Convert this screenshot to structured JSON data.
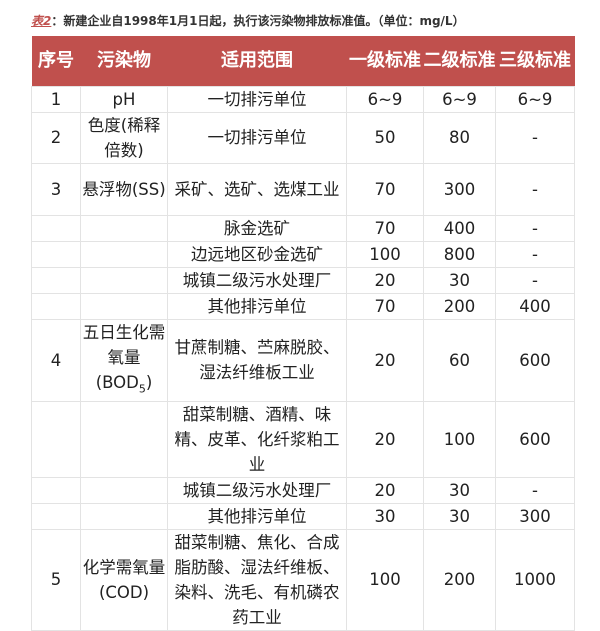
{
  "caption": {
    "tag": "表2",
    "text": "：新建企业自1998年1月1日起，执行该污染物排放标准值。（单位：mg/L）"
  },
  "colors": {
    "header_bg": "#c0504d",
    "header_text": "#ffffff",
    "tag": "#c0504d"
  },
  "headers": [
    "序号",
    "污染物",
    "适用范围",
    "一级标准",
    "二级标准",
    "三级标准"
  ],
  "rows": [
    {
      "no": "1",
      "pollutant": "pH",
      "scope": "一切排污单位",
      "l1": "6~9",
      "l2": "6~9",
      "l3": "6~9"
    },
    {
      "no": "2",
      "pollutant": "色度(稀释倍数)",
      "scope": "一切排污单位",
      "l1": "50",
      "l2": "80",
      "l3": "-"
    },
    {
      "no": "3",
      "pollutant": "悬浮物(SS)",
      "scope": "采矿、选矿、选煤工业",
      "l1": "70",
      "l2": "300",
      "l3": "-"
    },
    {
      "no": "",
      "pollutant": "",
      "scope": "脉金选矿",
      "l1": "70",
      "l2": "400",
      "l3": "-"
    },
    {
      "no": "",
      "pollutant": "",
      "scope": "边远地区砂金选矿",
      "l1": "100",
      "l2": "800",
      "l3": "-"
    },
    {
      "no": "",
      "pollutant": "",
      "scope": "城镇二级污水处理厂",
      "l1": "20",
      "l2": "30",
      "l3": "-"
    },
    {
      "no": "",
      "pollutant": "",
      "scope": "其他排污单位",
      "l1": "70",
      "l2": "200",
      "l3": "400"
    },
    {
      "no": "4",
      "pollutant": "五日生化需氧量(BOD",
      "pollutant_sub": "5",
      "pollutant_end": ")",
      "scope": "甘蔗制糖、苎麻脱胶、湿法纤维板工业",
      "l1": "20",
      "l2": "60",
      "l3": "600"
    },
    {
      "no": "",
      "pollutant": "",
      "scope": "甜菜制糖、酒精、味精、皮革、化纤浆粕工业",
      "l1": "20",
      "l2": "100",
      "l3": "600"
    },
    {
      "no": "",
      "pollutant": "",
      "scope": "城镇二级污水处理厂",
      "l1": "20",
      "l2": "30",
      "l3": "-"
    },
    {
      "no": "",
      "pollutant": "",
      "scope": "其他排污单位",
      "l1": "30",
      "l2": "30",
      "l3": "300"
    },
    {
      "no": "5",
      "pollutant": "化学需氧量(COD)",
      "scope": "甜菜制糖、焦化、合成脂肪酸、湿法纤维板、染料、洗毛、有机磷农药工业",
      "l1": "100",
      "l2": "200",
      "l3": "1000"
    }
  ]
}
